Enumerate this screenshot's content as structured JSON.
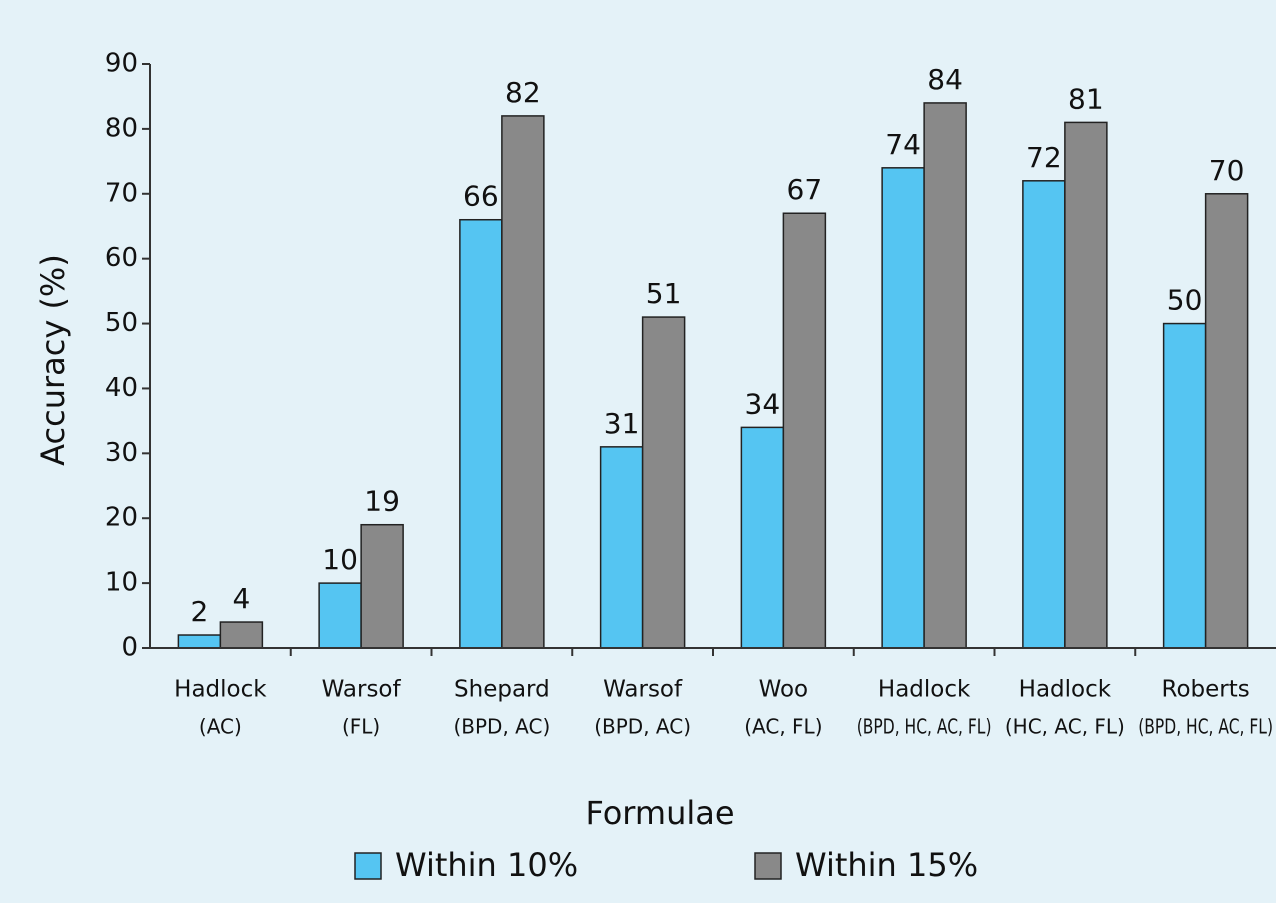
{
  "chart_data": {
    "type": "bar",
    "categories": [
      [
        "Hadlock",
        "(AC)"
      ],
      [
        "Warsof",
        "(FL)"
      ],
      [
        "Shepard",
        "(BPD, AC)"
      ],
      [
        "Warsof",
        "(BPD, AC)"
      ],
      [
        "Woo",
        "(AC, FL)"
      ],
      [
        "Hadlock",
        "(BPD, HC, AC, FL)"
      ],
      [
        "Hadlock",
        "(HC, AC, FL)"
      ],
      [
        "Roberts",
        "(BPD, HC, AC, FL)"
      ]
    ],
    "series": [
      {
        "name": "Within 10%",
        "color": "#55c5f2",
        "values": [
          2,
          10,
          66,
          31,
          34,
          74,
          72,
          50
        ]
      },
      {
        "name": "Within 15%",
        "color": "#898989",
        "values": [
          4,
          19,
          82,
          51,
          67,
          84,
          81,
          70
        ]
      }
    ],
    "xlabel": "Formulae",
    "ylabel": "Accuracy (%)",
    "ylim": [
      0,
      90
    ],
    "yticks": [
      0,
      10,
      20,
      30,
      40,
      50,
      60,
      70,
      80,
      90
    ]
  }
}
